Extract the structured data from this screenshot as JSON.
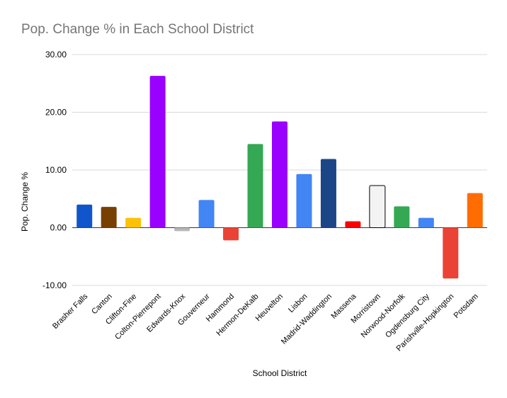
{
  "chart_data": {
    "type": "bar",
    "title": "Pop. Change % in Each School District",
    "xlabel": "School District",
    "ylabel": "Pop. Change %",
    "ylim": [
      -10,
      30
    ],
    "yticks": [
      "30.00",
      "20.00",
      "10.00",
      "0.00",
      "-10.00"
    ],
    "ytick_values": [
      30,
      20,
      10,
      0,
      -10
    ],
    "grid": true,
    "legend": "none",
    "categories": [
      "Brasher Falls",
      "Canton",
      "Clifton-Fine",
      "Colton-Pierrepont",
      "Edwards-Knox",
      "Gouverneur",
      "Hammond",
      "Hermon-DeKalb",
      "Heuvelton",
      "Lisbon",
      "Madrid-Waddington",
      "Massena",
      "Morristown",
      "Norwood-Norfolk",
      "Ogdensburg City",
      "Parishville-Hopkington",
      "Potsdam"
    ],
    "values": [
      4.0,
      3.6,
      1.7,
      26.3,
      -0.6,
      4.8,
      -2.2,
      14.5,
      18.4,
      9.3,
      11.9,
      1.1,
      7.3,
      3.7,
      1.7,
      -8.8,
      6.0
    ],
    "colors": [
      "#1155cc",
      "#783f04",
      "#ffc107",
      "#9900ff",
      "#b7b7b7",
      "#4285f4",
      "#ea4335",
      "#34a853",
      "#9900ff",
      "#4285f4",
      "#1c4587",
      "#ff0000",
      "#f3f3f3",
      "#34a853",
      "#4285f4",
      "#ea4335",
      "#ff6d01"
    ]
  }
}
